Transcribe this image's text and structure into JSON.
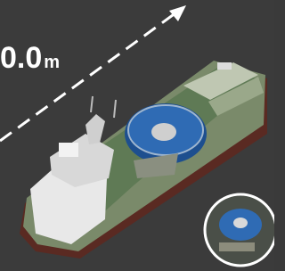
{
  "overlay": {
    "value_text": "0.0",
    "unit": "m"
  }
}
